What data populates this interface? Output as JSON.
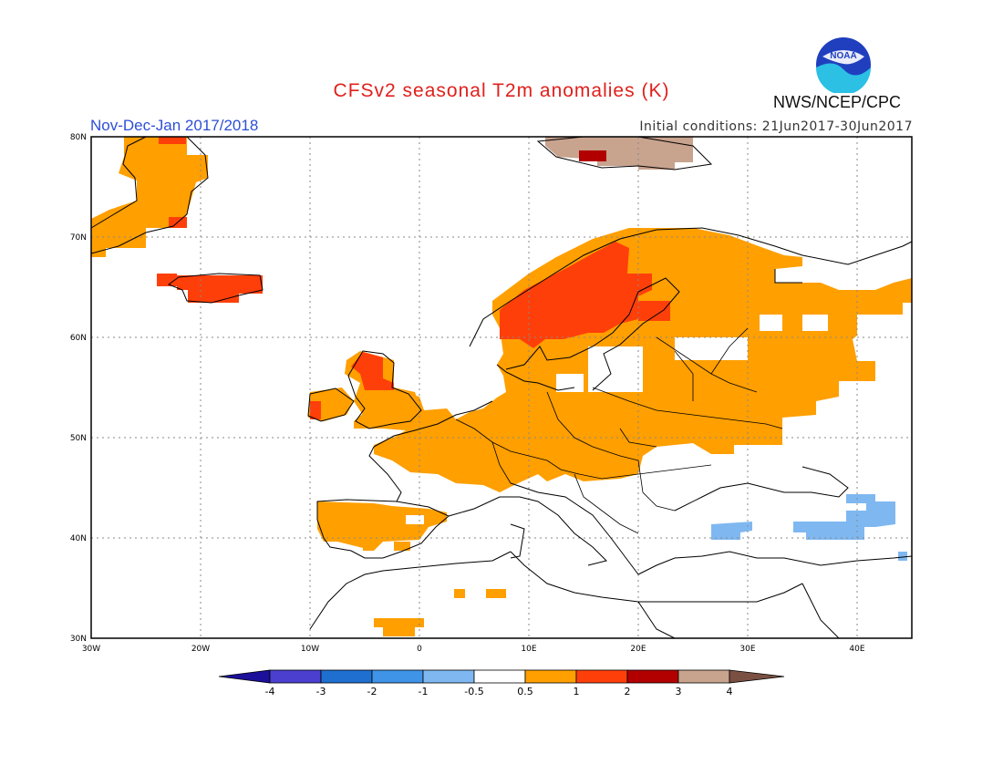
{
  "header": {
    "title": "CFSv2 seasonal T2m anomalies (K)",
    "period": "Nov-Dec-Jan 2017/2018",
    "initial_conditions": "Initial conditions: 21Jun2017-30Jun2017",
    "agency": "NWS/NCEP/CPC",
    "logo_text": "NOAA"
  },
  "map": {
    "projection": "lat-lon",
    "lon_range": [
      -30,
      45
    ],
    "lat_range": [
      30,
      80
    ],
    "grid": true,
    "lat_ticks": [
      "30N",
      "40N",
      "50N",
      "60N",
      "70N",
      "80N"
    ],
    "lon_ticks": [
      "30W",
      "20W",
      "10W",
      "0",
      "10E",
      "20E",
      "30E",
      "40E"
    ]
  },
  "colorbar": {
    "labels": [
      "-4",
      "-3",
      "-2",
      "-1",
      "-0.5",
      "0.5",
      "1",
      "2",
      "3",
      "4"
    ],
    "colors": [
      "#1c0f9a",
      "#4a3fcf",
      "#1e6fd0",
      "#3f94e8",
      "#7fb8f0",
      "#ffffff",
      "#ff9f00",
      "#ff3f0a",
      "#b20000",
      "#c8a38e",
      "#7a5043"
    ]
  },
  "anomaly_regions": [
    {
      "name": "greenland",
      "class": "1-2",
      "color": "#ff9f00"
    },
    {
      "name": "iceland",
      "class": "2-3",
      "color": "#ff3f0a"
    },
    {
      "name": "svalbard",
      "class": "3-4",
      "color": "#c8a38e"
    },
    {
      "name": "svalbard-core",
      "class": "3",
      "color": "#b20000"
    },
    {
      "name": "scandinavia",
      "class": "2-3",
      "color": "#ff3f0a"
    },
    {
      "name": "scotland",
      "class": "2-3",
      "color": "#ff3f0a"
    },
    {
      "name": "west-central-europe",
      "class": "1-2",
      "color": "#ff9f00"
    },
    {
      "name": "iberia",
      "class": "1-2",
      "color": "#ff9f00"
    },
    {
      "name": "north-africa",
      "class": "1-2",
      "color": "#ff9f00"
    },
    {
      "name": "eastern-europe",
      "class": "1-2",
      "color": "#ff9f00"
    },
    {
      "name": "turkey-black-sea",
      "class": "-1 to -0.5",
      "color": "#7fb8f0"
    }
  ]
}
